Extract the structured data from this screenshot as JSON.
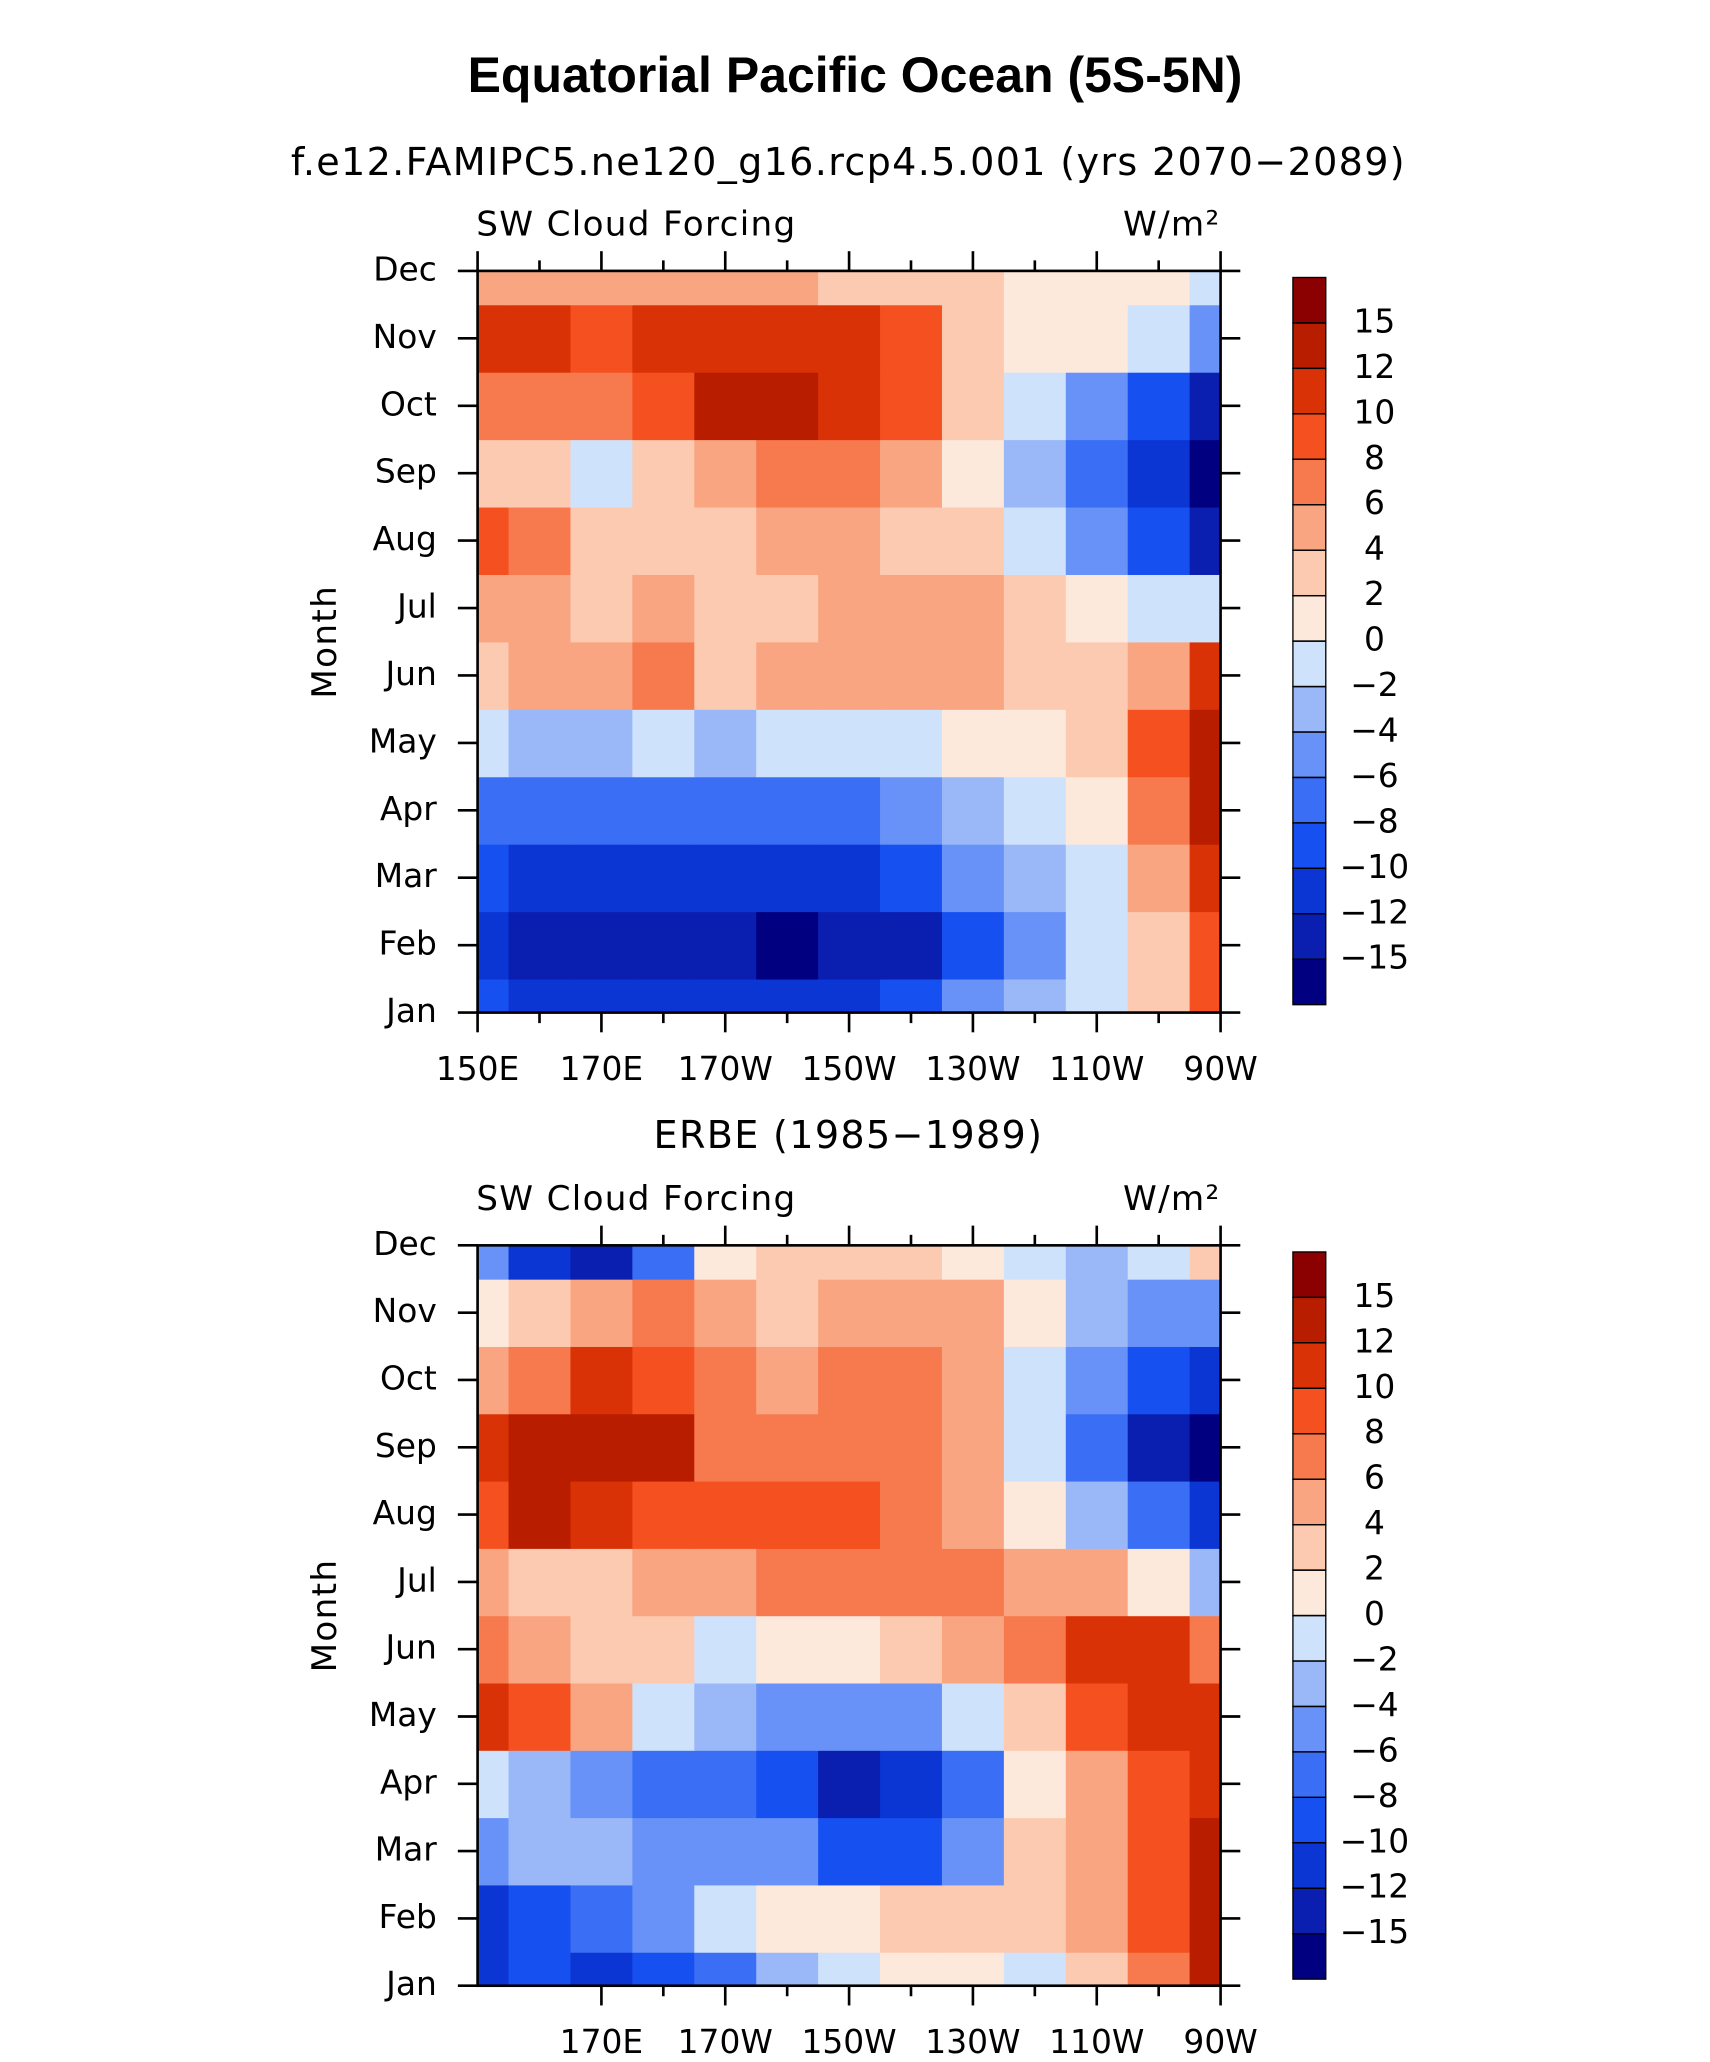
{
  "title": "Equatorial Pacific Ocean (5S-5N)",
  "chart_data": [
    {
      "type": "heatmap",
      "subtitle": "f.e12.FAMIPC5.ne120_g16.rcp4.5.001 (yrs 2070−2089)",
      "left_label": "SW Cloud Forcing",
      "right_label": "W/m²",
      "ylabel": "Month",
      "x": [
        150,
        160,
        170,
        180,
        190,
        200,
        210,
        220,
        230,
        240,
        250,
        260,
        270
      ],
      "y": [
        "Jan",
        "Feb",
        "Mar",
        "Apr",
        "May",
        "Jun",
        "Jul",
        "Aug",
        "Sep",
        "Oct",
        "Nov",
        "Dec"
      ],
      "xlim": [
        150,
        270
      ],
      "xticks": [
        {
          "value": 150,
          "label": "150E"
        },
        {
          "value": 170,
          "label": "170E"
        },
        {
          "value": 190,
          "label": "170W"
        },
        {
          "value": 210,
          "label": "150W"
        },
        {
          "value": 230,
          "label": "130W"
        },
        {
          "value": 250,
          "label": "110W"
        },
        {
          "value": 270,
          "label": "90W"
        }
      ],
      "z": [
        [
          -10,
          -12,
          -12,
          -12,
          -12,
          -12,
          -12,
          -10,
          -6,
          -4,
          -2,
          2,
          8
        ],
        [
          -12,
          -15,
          -14,
          -13,
          -15,
          -16,
          -15,
          -14,
          -10,
          -6,
          -2,
          2,
          8
        ],
        [
          -10,
          -12,
          -12,
          -12,
          -12,
          -12,
          -12,
          -10,
          -6,
          -4,
          -2,
          4,
          10
        ],
        [
          -8,
          -8,
          -8,
          -8,
          -8,
          -8,
          -8,
          -6,
          -4,
          -2,
          0,
          6,
          12
        ],
        [
          -2,
          -3,
          -3,
          -2,
          -3,
          -2,
          -2,
          -2,
          0,
          0,
          2,
          8,
          14
        ],
        [
          2,
          4,
          4,
          6,
          3,
          4,
          4,
          4,
          4,
          2,
          2,
          4,
          10
        ],
        [
          4,
          4,
          2,
          4,
          3,
          3,
          4,
          4,
          4,
          2,
          0,
          -2,
          -2
        ],
        [
          8,
          6,
          2,
          2,
          2,
          4,
          4,
          3,
          2,
          -2,
          -6,
          -10,
          -14
        ],
        [
          2,
          2,
          -2,
          2,
          4,
          6,
          6,
          4,
          0,
          -4,
          -8,
          -12,
          -16
        ],
        [
          6,
          6,
          6,
          8,
          12,
          12,
          10,
          8,
          2,
          -2,
          -6,
          -10,
          -14
        ],
        [
          10,
          10,
          8,
          10,
          10,
          10,
          10,
          8,
          2,
          0,
          0,
          -2,
          -6
        ],
        [
          4,
          4,
          4,
          4,
          4,
          4,
          2,
          2,
          2,
          0,
          0,
          0,
          -2
        ]
      ],
      "levels": [
        {
          "value": -15,
          "label": "−15"
        },
        {
          "value": -12,
          "label": "−12"
        },
        {
          "value": -10,
          "label": "−10"
        },
        {
          "value": -8,
          "label": "−8"
        },
        {
          "value": -6,
          "label": "−6"
        },
        {
          "value": -4,
          "label": "−4"
        },
        {
          "value": -2,
          "label": "−2"
        },
        0,
        2,
        4,
        6,
        8,
        10,
        12,
        15
      ],
      "colors": [
        "#000080",
        "#0a1fb0",
        "#0b36d4",
        "#1750f0",
        "#3a6ff5",
        "#6892f7",
        "#9ab8f8",
        "#cfe2fb",
        "#fde9dc",
        "#fccab0",
        "#f9a582",
        "#f77a4e",
        "#f5501f",
        "#d93206",
        "#b81d00",
        "#8b0000"
      ]
    },
    {
      "type": "heatmap",
      "subtitle": "ERBE (1985−1989)",
      "left_label": "SW Cloud Forcing",
      "right_label": "W/m²",
      "ylabel": "Month",
      "x": [
        150,
        160,
        170,
        180,
        190,
        200,
        210,
        220,
        230,
        240,
        250,
        260,
        270
      ],
      "y": [
        "Jan",
        "Feb",
        "Mar",
        "Apr",
        "May",
        "Jun",
        "Jul",
        "Aug",
        "Sep",
        "Oct",
        "Nov",
        "Dec"
      ],
      "xlim": [
        150,
        270
      ],
      "xticks": [
        {
          "value": 170,
          "label": "170E"
        },
        {
          "value": 190,
          "label": "170W"
        },
        {
          "value": 210,
          "label": "150W"
        },
        {
          "value": 230,
          "label": "130W"
        },
        {
          "value": 250,
          "label": "110W"
        },
        {
          "value": 270,
          "label": "90W"
        }
      ],
      "z": [
        [
          -12,
          -10,
          -12,
          -10,
          -8,
          -4,
          -2,
          0,
          0,
          -2,
          2,
          6,
          12
        ],
        [
          -12,
          -10,
          -8,
          -6,
          -2,
          0,
          0,
          2,
          2,
          2,
          4,
          8,
          14
        ],
        [
          -6,
          -4,
          -4,
          -6,
          -6,
          -6,
          -10,
          -10,
          -6,
          2,
          4,
          8,
          14
        ],
        [
          -2,
          -4,
          -6,
          -8,
          -8,
          -10,
          -14,
          -12,
          -8,
          0,
          4,
          8,
          10
        ],
        [
          10,
          8,
          4,
          -2,
          -4,
          -6,
          -6,
          -6,
          -2,
          2,
          8,
          10,
          10
        ],
        [
          6,
          4,
          2,
          2,
          -2,
          0,
          0,
          2,
          4,
          6,
          10,
          10,
          6
        ],
        [
          4,
          2,
          2,
          4,
          4,
          6,
          6,
          6,
          6,
          4,
          4,
          0,
          -4
        ],
        [
          8,
          12,
          10,
          8,
          8,
          8,
          8,
          6,
          4,
          0,
          -4,
          -8,
          -12
        ],
        [
          10,
          12,
          12,
          12,
          6,
          6,
          6,
          6,
          4,
          -2,
          -8,
          -14,
          -16
        ],
        [
          4,
          6,
          10,
          8,
          6,
          4,
          6,
          6,
          4,
          -2,
          -6,
          -10,
          -12
        ],
        [
          0,
          2,
          4,
          6,
          4,
          2,
          4,
          4,
          4,
          0,
          -4,
          -6,
          -6
        ],
        [
          -6,
          -12,
          -14,
          -8,
          0,
          2,
          2,
          2,
          0,
          -2,
          -4,
          -2,
          2
        ]
      ],
      "levels": [
        {
          "value": -15,
          "label": "−15"
        },
        {
          "value": -12,
          "label": "−12"
        },
        {
          "value": -10,
          "label": "−10"
        },
        {
          "value": -8,
          "label": "−8"
        },
        {
          "value": -6,
          "label": "−6"
        },
        {
          "value": -4,
          "label": "−4"
        },
        {
          "value": -2,
          "label": "−2"
        },
        0,
        2,
        4,
        6,
        8,
        10,
        12,
        15
      ],
      "colors": [
        "#000080",
        "#0a1fb0",
        "#0b36d4",
        "#1750f0",
        "#3a6ff5",
        "#6892f7",
        "#9ab8f8",
        "#cfe2fb",
        "#fde9dc",
        "#fccab0",
        "#f9a582",
        "#f77a4e",
        "#f5501f",
        "#d93206",
        "#b81d00",
        "#8b0000"
      ]
    }
  ]
}
